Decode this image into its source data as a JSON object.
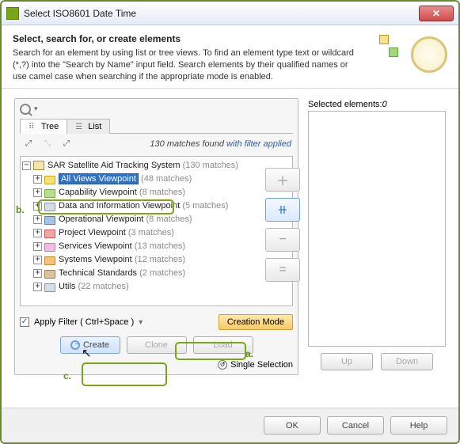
{
  "window": {
    "title": "Select ISO8601 Date Time"
  },
  "header": {
    "heading": "Select, search for, or create elements",
    "description": "Search for an element by using list or tree views. To find an element type text or wildcard (*,?) into the \"Search by Name\" input field. Search elements by their qualified names or use camel case when searching if the appropriate mode is enabled."
  },
  "tabs": {
    "tree": "Tree",
    "list": "List"
  },
  "matches": {
    "count_text": "130 matches found",
    "suffix": " with filter applied"
  },
  "tree": {
    "root": {
      "label": "SAR Satellite Aid Tracking System",
      "count": "(130 matches)"
    },
    "items": [
      {
        "label": "All Views Viewpoint",
        "count": "(48 matches)",
        "folder": "yellow",
        "selected": true
      },
      {
        "label": "Capability Viewpoint",
        "count": "(8 matches)",
        "folder": "green"
      },
      {
        "label": "Data and Information Viewpoint",
        "count": "(5 matches)",
        "folder": "grey"
      },
      {
        "label": "Operational Viewpoint",
        "count": "(8 matches)",
        "folder": "blue"
      },
      {
        "label": "Project Viewpoint",
        "count": "(3 matches)",
        "folder": "red"
      },
      {
        "label": "Services Viewpoint",
        "count": "(13 matches)",
        "folder": "pink"
      },
      {
        "label": "Systems Viewpoint",
        "count": "(12 matches)",
        "folder": "orange"
      },
      {
        "label": "Technical Standards",
        "count": "(2 matches)",
        "folder": "brown"
      },
      {
        "label": "Utils",
        "count": "(22 matches)",
        "folder": "grey"
      }
    ]
  },
  "filter": {
    "checkbox_label": "Apply Filter ( Ctrl+Space )",
    "creation_mode": "Creation Mode"
  },
  "buttons": {
    "create": "Create",
    "clone": "Clone",
    "load": "Load",
    "up": "Up",
    "down": "Down",
    "ok": "OK",
    "cancel": "Cancel",
    "help": "Help"
  },
  "single_selection": "Single Selection",
  "selected_panel": {
    "label": "Selected elements:",
    "count": "0"
  },
  "callouts": {
    "a": "a.",
    "b": "b.",
    "c": "c."
  }
}
